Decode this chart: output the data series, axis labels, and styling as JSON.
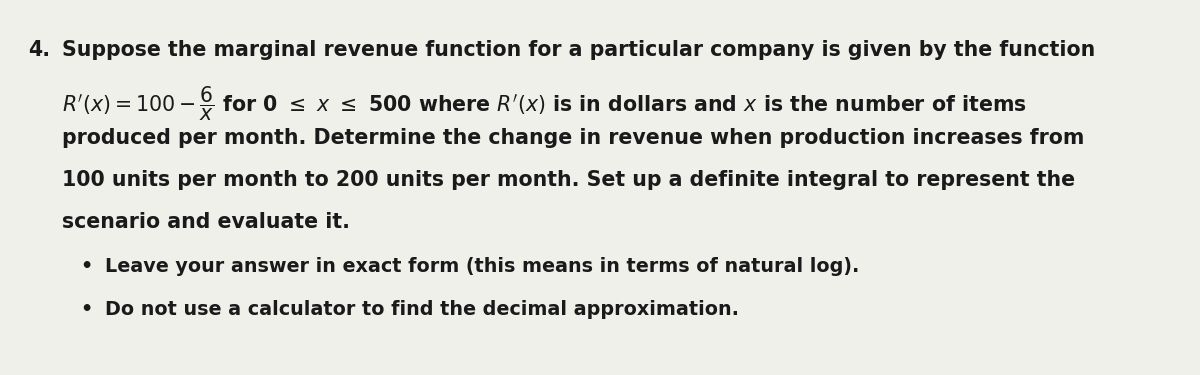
{
  "background_color": "#f0f0eb",
  "text_color": "#1a1a1a",
  "line1_num": "4.",
  "line1_text": "Suppose the marginal revenue function for a particular company is given by the function",
  "line3": "produced per month. Determine the change in revenue when production increases from",
  "line4": "100 units per month to 200 units per month. Set up a definite integral to represent the",
  "line5": "scenario and evaluate it.",
  "bullet1": "Leave your answer in exact form (this means in terms of natural log).",
  "bullet2": "Do not use a calculator to find the decimal approximation.",
  "font_size_main": 14.8,
  "font_size_bullet": 13.8
}
